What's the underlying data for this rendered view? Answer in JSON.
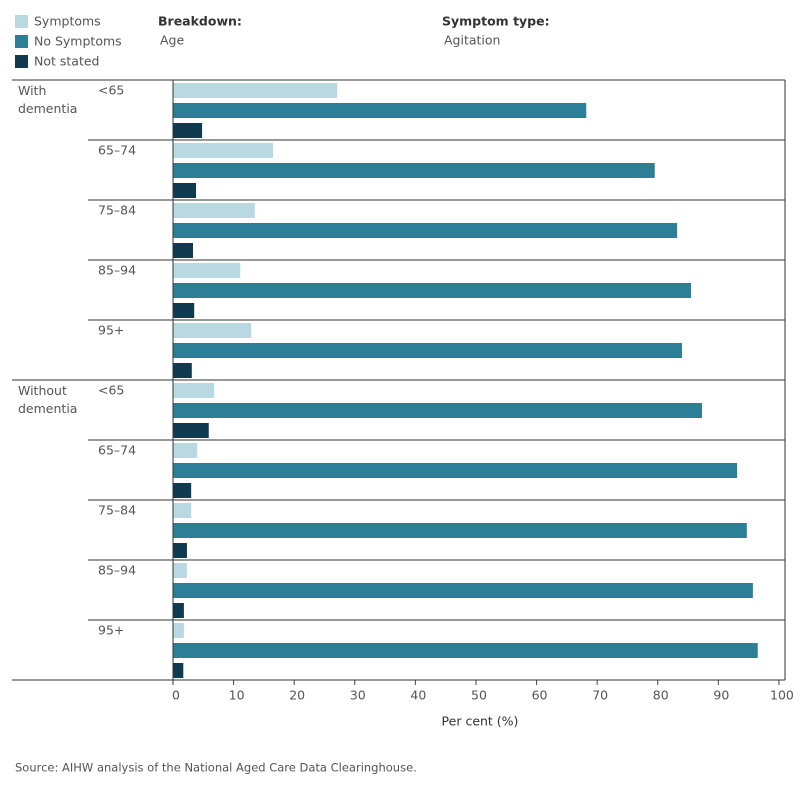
{
  "chart_data": {
    "type": "bar",
    "orientation": "horizontal",
    "breakdown_label": "Breakdown:",
    "breakdown_value": "Age",
    "symptom_type_label": "Symptom type:",
    "symptom_type_value": "Agitation",
    "groups": [
      {
        "label": "With dementia",
        "categories": [
          "<65",
          "65–74",
          "75–84",
          "85–94",
          "95+"
        ]
      },
      {
        "label": "Without dementia",
        "categories": [
          "<65",
          "65–74",
          "75–84",
          "85–94",
          "95+"
        ]
      }
    ],
    "series": [
      {
        "name": "Symptoms",
        "color": "#b9d9e2",
        "values": [
          27.1,
          16.5,
          13.5,
          11.1,
          12.9,
          6.8,
          4.0,
          3.0,
          2.3,
          1.8
        ]
      },
      {
        "name": "No Symptoms",
        "color": "#2c7f96",
        "values": [
          68.2,
          79.5,
          83.2,
          85.5,
          84.0,
          87.3,
          93.1,
          94.7,
          95.7,
          96.5
        ]
      },
      {
        "name": "Not stated",
        "color": "#0f3a50",
        "values": [
          4.8,
          3.8,
          3.3,
          3.5,
          3.1,
          5.9,
          3.0,
          2.3,
          1.8,
          1.7
        ]
      }
    ],
    "xlim": [
      0,
      101
    ],
    "xticks": [
      0,
      10,
      20,
      30,
      40,
      50,
      60,
      70,
      80,
      90,
      100
    ],
    "xlabel": "Per cent (%)",
    "source": "Source: AIHW analysis of the National Aged Care Data Clearinghouse."
  }
}
